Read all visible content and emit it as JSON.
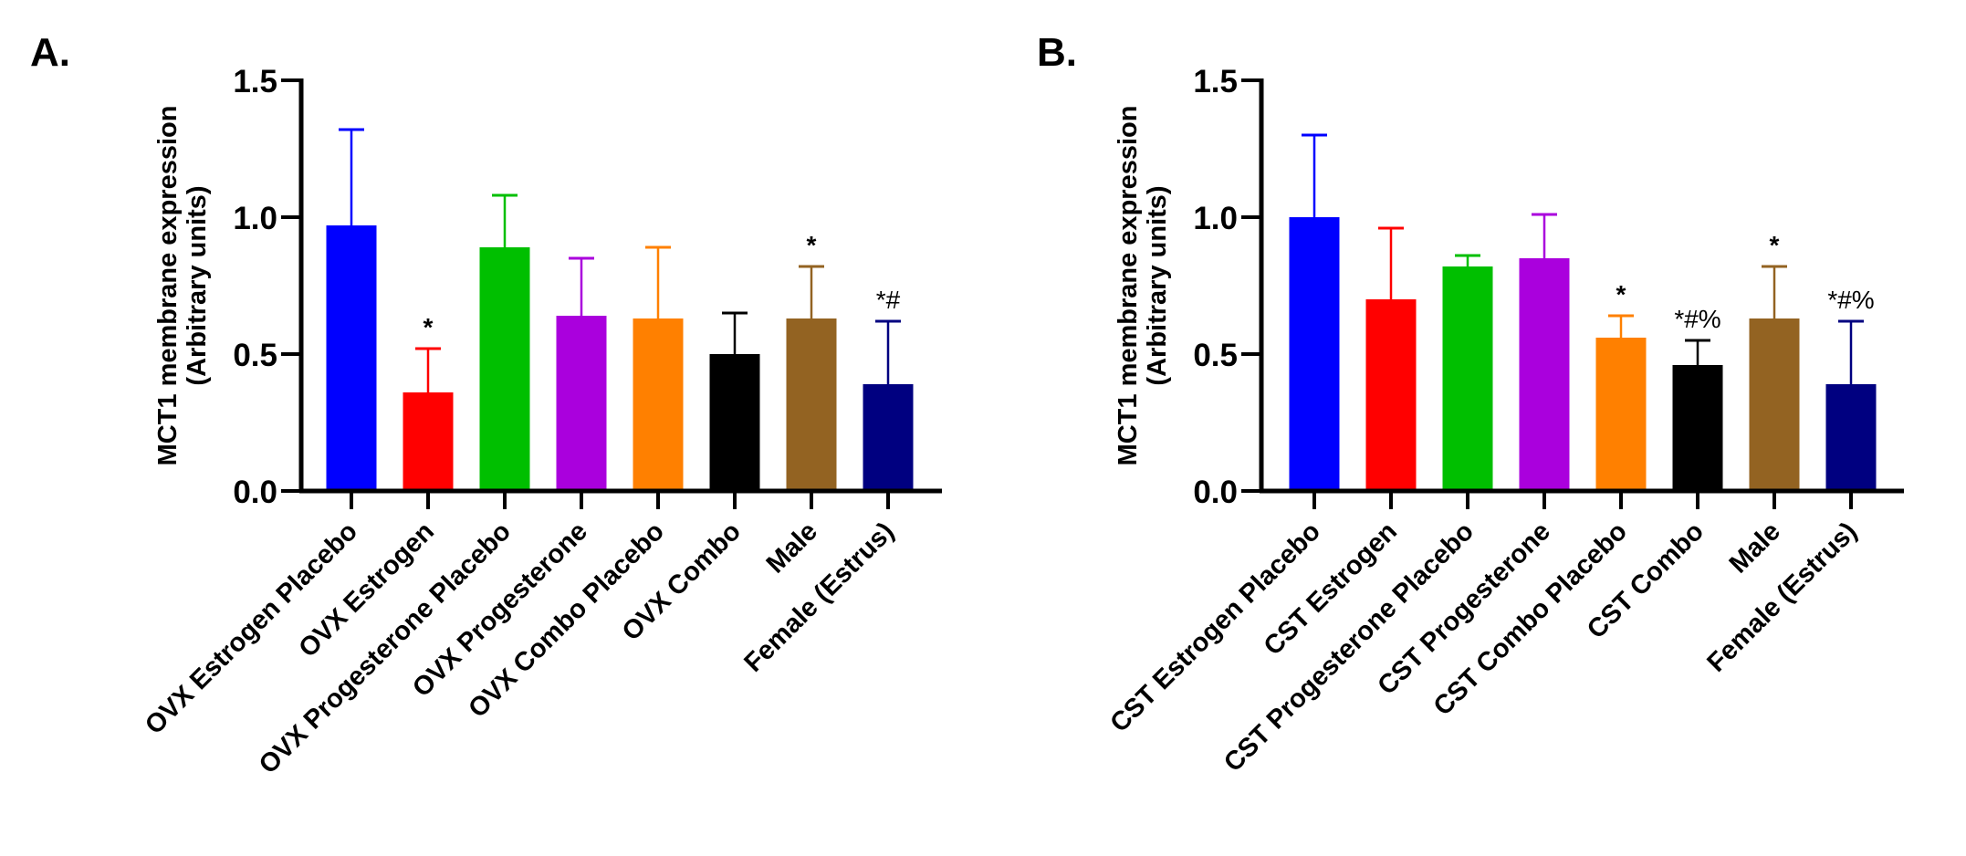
{
  "chart_data": [
    {
      "type": "bar",
      "panel": "A.",
      "title": "",
      "xlabel": "",
      "ylabel": [
        "MCT1 membrane expression",
        "(Arbitrary units)"
      ],
      "ylim": [
        0,
        1.5
      ],
      "yticks": [
        0.0,
        0.5,
        1.0,
        1.5
      ],
      "ytick_labels": [
        "0.0",
        "0.5",
        "1.0",
        "1.5"
      ],
      "grid": false,
      "legend": "none",
      "error_bars": "upper only (mean + error)",
      "categories": [
        "OVX Estrogen Placebo",
        "OVX Estrogen",
        "OVX Progesterone Placebo",
        "OVX Progesterone",
        "OVX Combo Placebo",
        "OVX Combo",
        "Male",
        "Female (Estrus)"
      ],
      "values": [
        0.97,
        0.36,
        0.89,
        0.64,
        0.63,
        0.5,
        0.63,
        0.39
      ],
      "error_upper": [
        1.32,
        0.52,
        1.08,
        0.85,
        0.89,
        0.65,
        0.82,
        0.62
      ],
      "colors": [
        "#0000ff",
        "#ff0000",
        "#00bf00",
        "#aa00dd",
        "#ff8000",
        "#000000",
        "#936322",
        "#000080"
      ],
      "annotations": [
        "",
        "*",
        "",
        "",
        "",
        "",
        "*",
        "*#"
      ]
    },
    {
      "type": "bar",
      "panel": "B.",
      "title": "",
      "xlabel": "",
      "ylabel": [
        "MCT1 membrane expression",
        "(Arbitrary units)"
      ],
      "ylim": [
        0,
        1.5
      ],
      "yticks": [
        0.0,
        0.5,
        1.0,
        1.5
      ],
      "ytick_labels": [
        "0.0",
        "0.5",
        "1.0",
        "1.5"
      ],
      "grid": false,
      "legend": "none",
      "error_bars": "upper only (mean + error)",
      "categories": [
        "CST Estrogen Placebo",
        "CST Estrogen",
        "CST Progesterone Placebo",
        "CST Progesterone",
        "CST Combo Placebo",
        "CST Combo",
        "Male",
        "Female (Estrus)"
      ],
      "values": [
        1.0,
        0.7,
        0.82,
        0.85,
        0.56,
        0.46,
        0.63,
        0.39
      ],
      "error_upper": [
        1.3,
        0.96,
        0.86,
        1.01,
        0.64,
        0.55,
        0.82,
        0.62
      ],
      "colors": [
        "#0000ff",
        "#ff0000",
        "#00bf00",
        "#aa00dd",
        "#ff8000",
        "#000000",
        "#936322",
        "#000080"
      ],
      "annotations": [
        "",
        "",
        "",
        "",
        "*",
        "*#%",
        "*",
        "*#%"
      ]
    }
  ]
}
